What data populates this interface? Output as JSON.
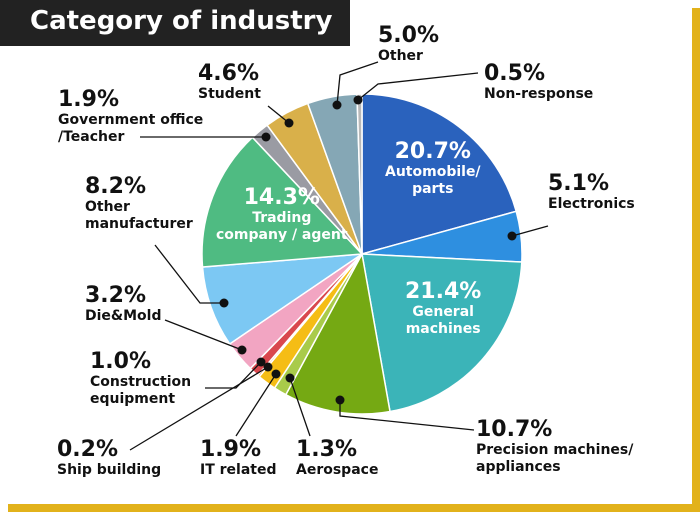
{
  "title": "Category of industry",
  "chart_data": {
    "type": "pie",
    "title": "Category of industry",
    "slices": [
      {
        "label": "Automobile/ parts",
        "label_lines": [
          "Automobile/",
          "parts"
        ],
        "value": 20.7,
        "value_label": "20.7%",
        "color": "#2a62bd"
      },
      {
        "label": "Electronics",
        "label_lines": [
          "Electronics"
        ],
        "value": 5.1,
        "value_label": "5.1%",
        "color": "#2e8fe0"
      },
      {
        "label": "General machines",
        "label_lines": [
          "General",
          "machines"
        ],
        "value": 21.4,
        "value_label": "21.4%",
        "color": "#3bb4b8"
      },
      {
        "label": "Precision machines/ appliances",
        "label_lines": [
          "Precision machines/",
          "appliances"
        ],
        "value": 10.7,
        "value_label": "10.7%",
        "color": "#75a913"
      },
      {
        "label": "Aerospace",
        "label_lines": [
          "Aerospace"
        ],
        "value": 1.3,
        "value_label": "1.3%",
        "color": "#a9cb4a"
      },
      {
        "label": "IT related",
        "label_lines": [
          "IT related"
        ],
        "value": 1.9,
        "value_label": "1.9%",
        "color": "#f5bd15"
      },
      {
        "label": "Ship building",
        "label_lines": [
          "Ship building"
        ],
        "value": 0.2,
        "value_label": "0.2%",
        "color": "#e8842a"
      },
      {
        "label": "Construction equipment",
        "label_lines": [
          "Construction",
          "equipment"
        ],
        "value": 1.0,
        "value_label": "1.0%",
        "color": "#d9484e"
      },
      {
        "label": "Die&Mold",
        "label_lines": [
          "Die&Mold"
        ],
        "value": 3.2,
        "value_label": "3.2%",
        "color": "#f2a5c2"
      },
      {
        "label": "Other manufacturer",
        "label_lines": [
          "Other",
          "manufacturer"
        ],
        "value": 8.2,
        "value_label": "8.2%",
        "color": "#7cc8f3"
      },
      {
        "label": "Trading company / agent",
        "label_lines": [
          "Trading",
          "company / agent"
        ],
        "value": 14.3,
        "value_label": "14.3%",
        "color": "#4fbb82"
      },
      {
        "label": "Government office /Teacher",
        "label_lines": [
          "Government office",
          "/Teacher"
        ],
        "value": 1.9,
        "value_label": "1.9%",
        "color": "#9a9ba3"
      },
      {
        "label": "Student",
        "label_lines": [
          "Student"
        ],
        "value": 4.6,
        "value_label": "4.6%",
        "color": "#d9b04a"
      },
      {
        "label": "Other",
        "label_lines": [
          "Other"
        ],
        "value": 5.0,
        "value_label": "5.0%",
        "color": "#85a7b5"
      },
      {
        "label": "Non-response",
        "label_lines": [
          "Non-response"
        ],
        "value": 0.5,
        "value_label": "0.5%",
        "color": "#b8b8b8"
      }
    ],
    "start_angle_deg": 0,
    "direction": "clockwise",
    "legend": "none"
  }
}
